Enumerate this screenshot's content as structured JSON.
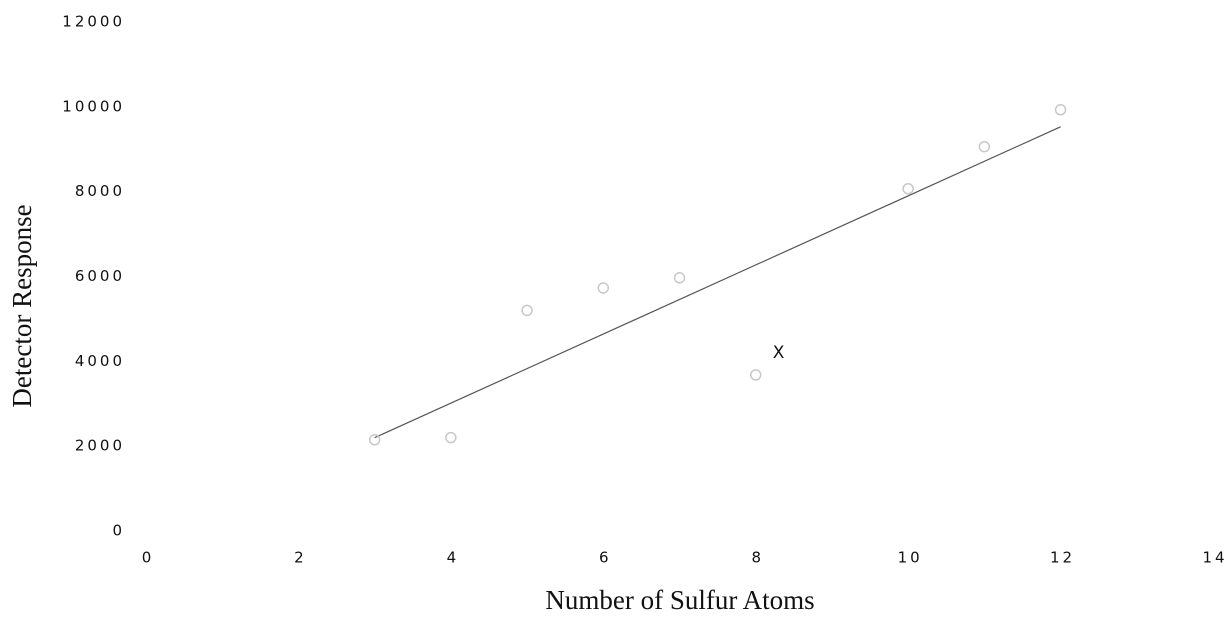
{
  "chart_data": {
    "type": "scatter",
    "x_label": "Number of Sulfur Atoms",
    "y_label": "Detector Response",
    "x": [
      3,
      4,
      5,
      6,
      7,
      8,
      10,
      11,
      12
    ],
    "values": [
      2150,
      2200,
      5200,
      5730,
      5970,
      3680,
      8070,
      9060,
      9930
    ],
    "color": "#c8c8c8",
    "trendline": {
      "x": [
        3,
        12
      ],
      "values": [
        2200,
        9530
      ],
      "color": "#555555"
    },
    "annotation": {
      "text": "X",
      "x": 8.3,
      "y": 4200
    },
    "xlim": [
      0,
      14
    ],
    "xticks": [
      0,
      2,
      4,
      6,
      8,
      10,
      12,
      14
    ],
    "ylim": [
      0,
      12000
    ],
    "yticks": [
      0,
      2000,
      4000,
      6000,
      8000,
      10000,
      12000
    ],
    "grid": false
  }
}
